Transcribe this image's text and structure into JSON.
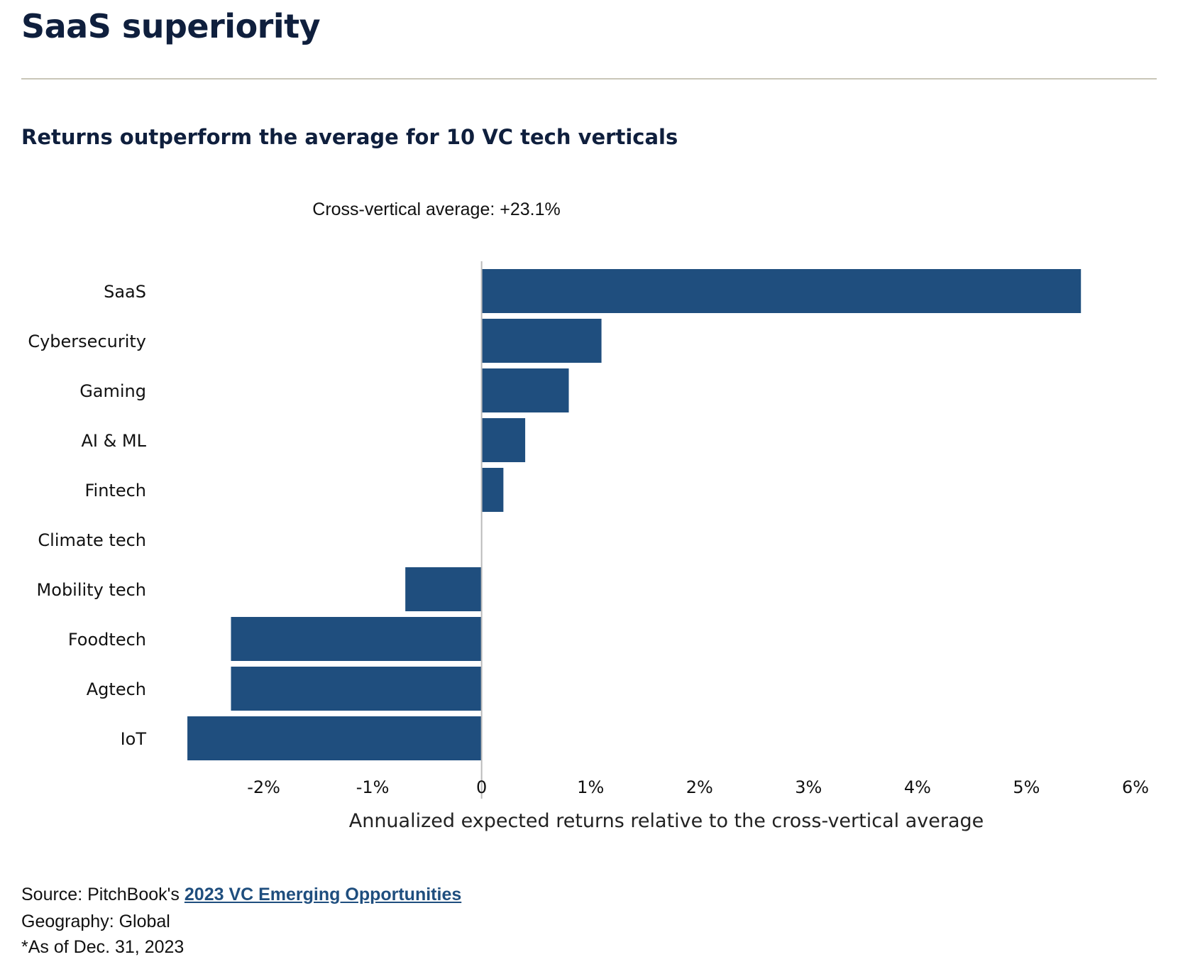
{
  "page": {
    "title": "SaaS superiority",
    "subtitle": "Returns outperform the average for 10 VC tech verticals",
    "annotation": "Cross-vertical average: +23.1%"
  },
  "colors": {
    "bar": "#1f4e7e",
    "axis_line": "#bbbbbb",
    "title": "#0f1f3d",
    "rule": "#c9c6b8",
    "link": "#1f4e7e"
  },
  "chart_data": {
    "type": "bar",
    "orientation": "horizontal",
    "categories": [
      "SaaS",
      "Cybersecurity",
      "Gaming",
      "AI & ML",
      "Fintech",
      "Climate tech",
      "Mobility tech",
      "Foodtech",
      "Agtech",
      "IoT"
    ],
    "values": [
      5.5,
      1.1,
      0.8,
      0.4,
      0.2,
      0.0,
      -0.7,
      -2.3,
      -2.3,
      -2.7
    ],
    "xlim": [
      -3.0,
      6.0
    ],
    "xticks": [
      -2,
      -1,
      0,
      1,
      2,
      3,
      4,
      5,
      6
    ],
    "xtick_labels": [
      "-2%",
      "-1%",
      "0",
      "1%",
      "2%",
      "3%",
      "4%",
      "5%",
      "6%"
    ],
    "xlabel": "Annualized expected returns relative to the cross-vertical average",
    "ylabel": "",
    "grid": false,
    "legend": "none"
  },
  "footer": {
    "source_prefix": "Source: PitchBook's ",
    "source_link": "2023 VC Emerging Opportunities",
    "geography": "Geography: Global",
    "as_of": "*As of Dec. 31, 2023"
  }
}
